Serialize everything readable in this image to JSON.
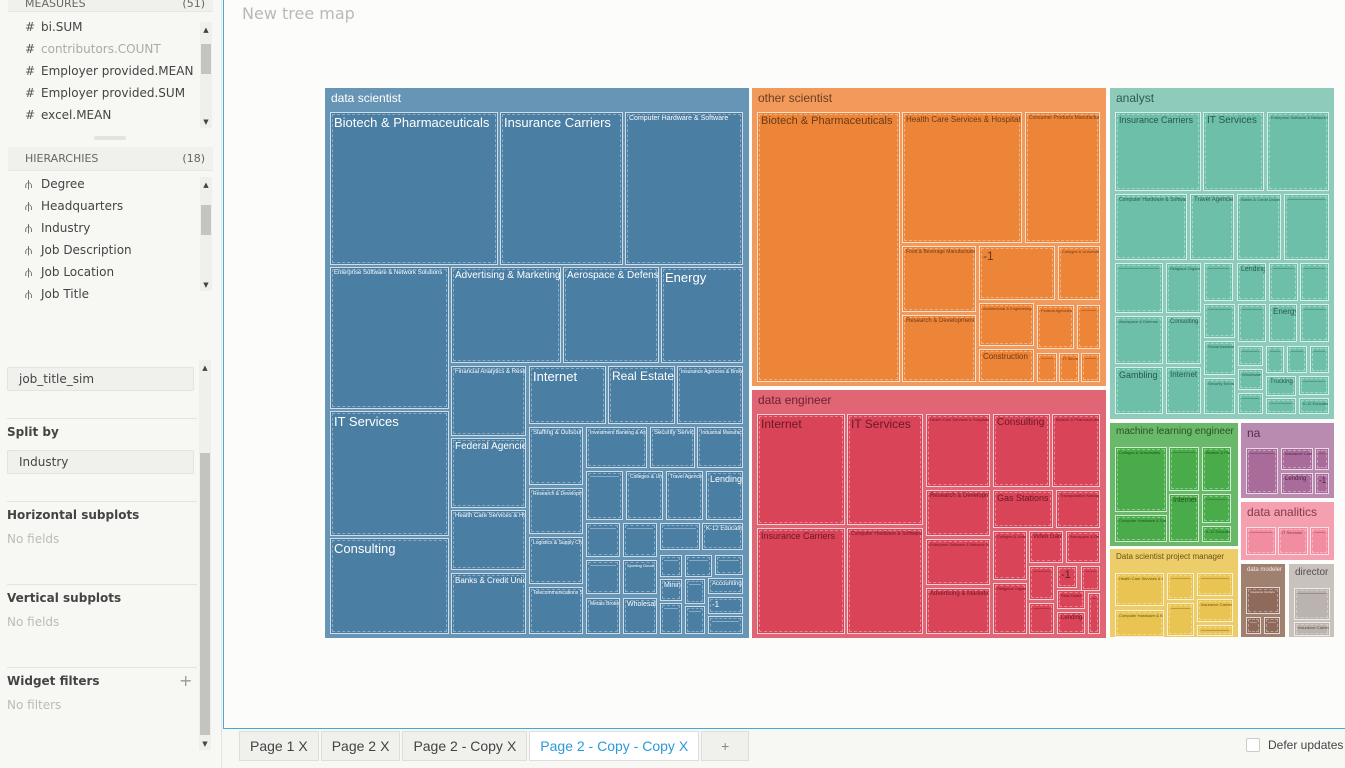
{
  "sidebar": {
    "measures": {
      "title": "MEASURES",
      "count": "(51)",
      "items": [
        "bi.SUM",
        "contributors.COUNT",
        "Employer provided.MEAN",
        "Employer provided.SUM",
        "excel.MEAN"
      ]
    },
    "hierarchies": {
      "title": "HIERARCHIES",
      "count": "(18)",
      "items": [
        "Degree",
        "Headquarters",
        "Industry",
        "Job Description",
        "Job Location",
        "Job Title"
      ]
    },
    "labels_field": "job_title_sim",
    "split_by": {
      "label": "Split by",
      "value": "Industry"
    },
    "horizontal_subplots": {
      "label": "Horizontal subplots",
      "empty": "No fields"
    },
    "vertical_subplots": {
      "label": "Vertical subplots",
      "empty": "No fields"
    },
    "widget_filters": {
      "label": "Widget filters",
      "add": "+",
      "empty": "No filters"
    }
  },
  "main": {
    "title": "New tree map"
  },
  "tabs": [
    {
      "label": "Page 1",
      "close": "X"
    },
    {
      "label": "Page 2",
      "close": "X"
    },
    {
      "label": "Page 2 - Copy",
      "close": "X"
    },
    {
      "label": "Page 2 - Copy - Copy",
      "close": "X",
      "active": true
    }
  ],
  "add_tab": "+",
  "defer_updates": {
    "label": "Defer updates",
    "checked": false
  },
  "chart_data": {
    "type": "treemap",
    "title": "New tree map",
    "group_by": "job_title_sim",
    "split_by": "Industry",
    "groups": [
      {
        "name": "data scientist",
        "color": "#4a7ea3",
        "children": [
          "Biotech & Pharmaceuticals",
          "Insurance Carriers",
          "Computer Hardware & Software",
          "Enterprise Software & Network Solutions",
          "Advertising & Marketing",
          "Aerospace & Defense",
          "Energy",
          "IT Services",
          "Consulting",
          "Financial Analytics & Research",
          "Federal Agencies",
          "Health Care Services & Hospitals",
          "Banks & Credit Unions",
          "Internet",
          "Real Estate",
          "Insurance Agencies & Brokerages",
          "Staffing & Outsourcing",
          "Research & Development",
          "Logistics & Supply Chain",
          "Telecommunications Services",
          "Investment Banking & Asset Management",
          "Security Services",
          "Industrial Manufacturing",
          "Colleges & Universities",
          "Travel Agencies",
          "Lending",
          "K-12 Education",
          "Sporting Goods Stores",
          "Mining",
          "Accounting",
          "Metals Brokers",
          "Wholesale",
          "-1"
        ]
      },
      {
        "name": "other scientist",
        "color": "#ed8539",
        "children": [
          "Biotech & Pharmaceuticals",
          "Health Care Services & Hospitals",
          "Consumer Products Manufacturing",
          "Food & Beverage Manufacturing",
          "Research & Development",
          "-1",
          "Colleges & Universities",
          "Architectural & Engineering Services",
          "Federal Agencies",
          "Construction",
          "IT Services"
        ]
      },
      {
        "name": "data engineer",
        "color": "#d94458",
        "children": [
          "Internet",
          "Insurance Carriers",
          "IT Services",
          "Computer Hardware & Software",
          "Health Care Services & Hospitals",
          "Research & Development",
          "Enterprise Software & Network Solutions",
          "Advertising & Marketing",
          "Consulting",
          "Biotech & Pharmaceuticals",
          "Gas Stations",
          "Transportation Management",
          "Colleges & Universities",
          "Video Games",
          "Aerospace & Defense",
          "Religious Organizations",
          "-1",
          "Real Estate",
          "Lending"
        ]
      },
      {
        "name": "analyst",
        "color": "#6dbfaa",
        "children": [
          "Insurance Carriers",
          "IT Services",
          "Enterprise Software & Network Solutions",
          "Computer Hardware & Software",
          "Travel Agencies",
          "Banks & Credit Unions",
          "Religious Organizations",
          "Lending",
          "Aerospace & Defense",
          "Consulting",
          "Energy",
          "Gambling",
          "Internet",
          "Social Assistance",
          "Security Services",
          "Wholesale",
          "Trucking",
          "K-12 Education"
        ]
      },
      {
        "name": "machine learning engineer",
        "color": "#4aab4a",
        "children": [
          "Colleges & Universities",
          "Computer Hardware & Software",
          "Biotech & Pharmaceuticals",
          "Internet",
          "K-12 Education"
        ]
      },
      {
        "name": "na",
        "color": "#a86b9a",
        "children": [
          "Insurance Carriers",
          "Lending",
          "-1"
        ]
      },
      {
        "name": "data analitics",
        "color": "#f28ca0",
        "children": [
          "IT Services"
        ]
      },
      {
        "name": "Data scientist project manager",
        "color": "#e9c452",
        "children": [
          "Health Care Services & Hospitals",
          "Computer Hardware & Software",
          "Insurance Carriers"
        ]
      },
      {
        "name": "data modeler",
        "color": "#8f6a5a",
        "children": [
          "Insurance Carriers"
        ]
      },
      {
        "name": "director",
        "color": "#bbb3ae",
        "children": [
          "Insurance Carriers"
        ]
      }
    ]
  }
}
